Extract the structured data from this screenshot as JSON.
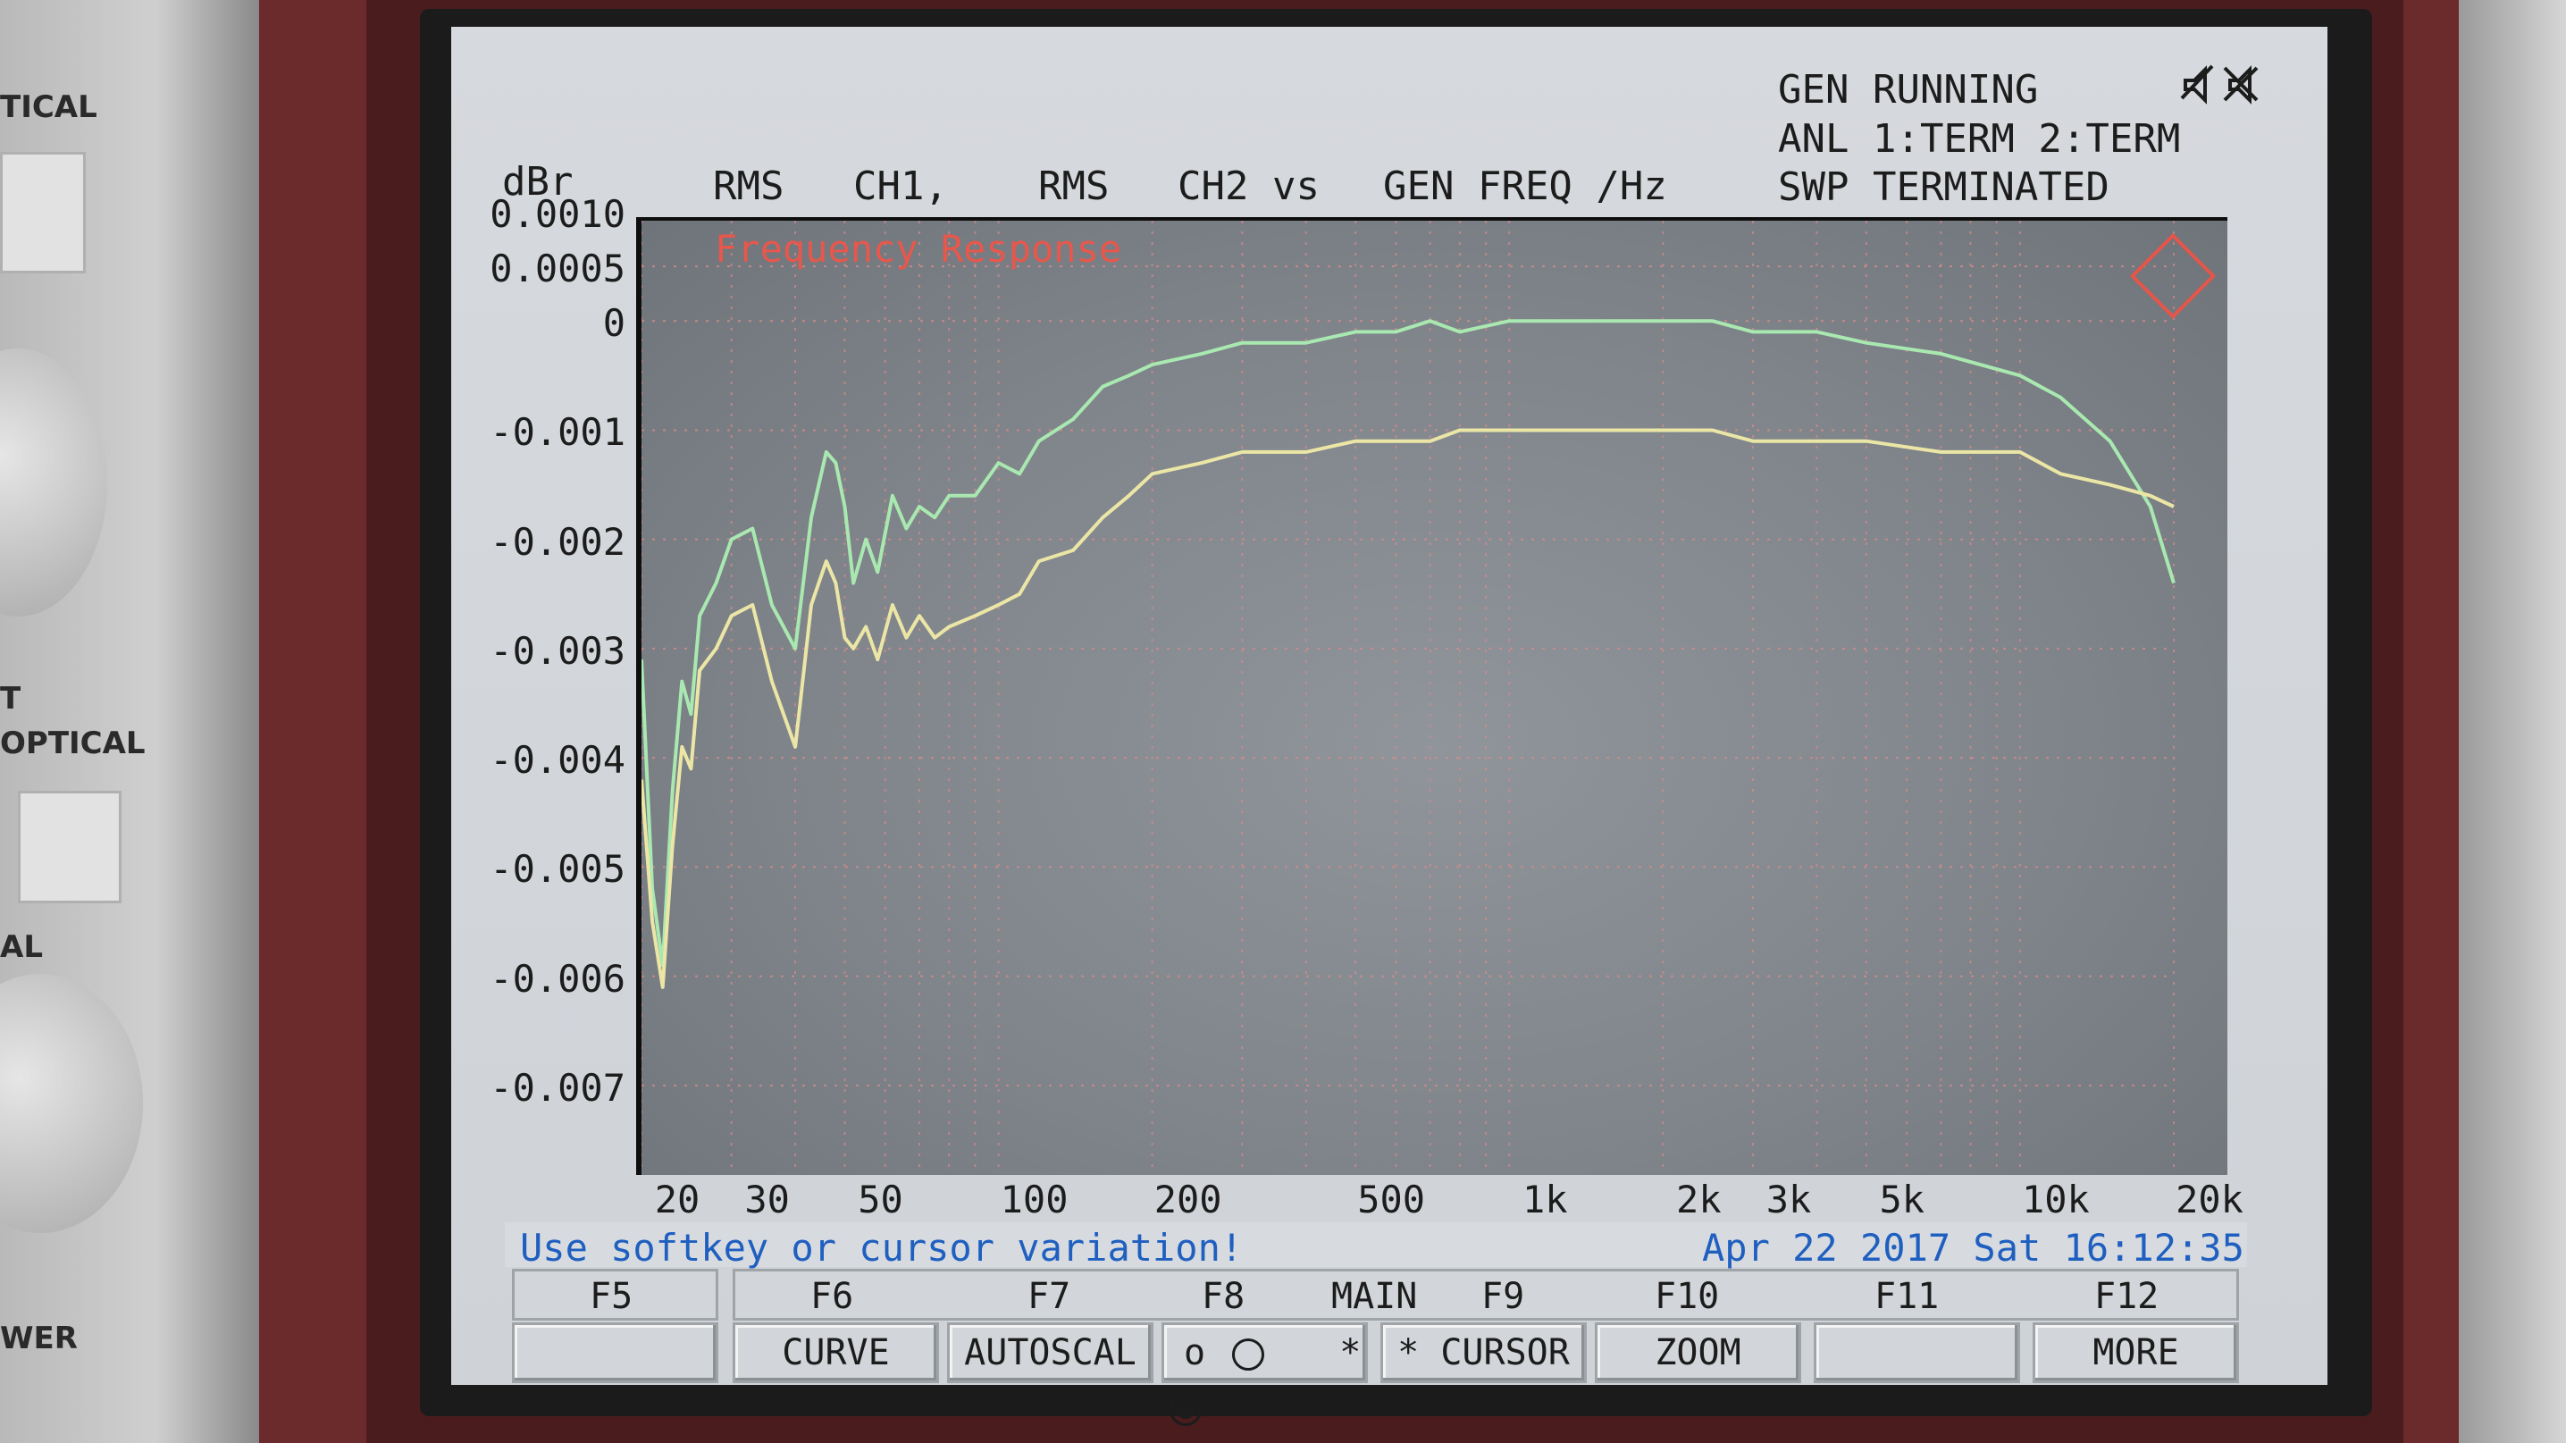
{
  "status": {
    "line1": "GEN RUNNING",
    "line2": "ANL 1:TERM 2:TERM",
    "line3": "SWP TERMINATED"
  },
  "header": {
    "unit": "dBr",
    "rms1": "RMS",
    "ch1": "CH1,",
    "rms2": "RMS",
    "ch2vs": "CH2 vs",
    "genfreq": "GEN FREQ /Hz"
  },
  "panel_labels": {
    "a": "TICAL",
    "b": "T",
    "c": "OPTICAL",
    "d": "AL",
    "e": "WER"
  },
  "message": "Use softkey or cursor variation!",
  "datetime": "Apr 22 2017 Sat 16:12:35",
  "fkeys": [
    "F5",
    "F6",
    "F7",
    "F8",
    "MAIN",
    "F9",
    "F10",
    "F11",
    "F12"
  ],
  "softkeys": {
    "f5": "",
    "curve": "CURVE",
    "autoscal": "AUTOSCAL",
    "radio_off": "o",
    "radio_on": "*",
    "cursor": "* CURSOR",
    "zoom": "ZOOM",
    "f11": "",
    "more": "MORE"
  },
  "colors": {
    "trace1": "#a9e8b0",
    "trace2": "#ece6a6",
    "title": "#e8574c",
    "grid": "#d98b8b"
  },
  "chart_data": {
    "type": "line",
    "title": "Frequency Response",
    "xlabel": "GEN FREQ /Hz",
    "ylabel": "dBr",
    "xscale": "log",
    "xlim": [
      20,
      20000
    ],
    "ylim": [
      -0.0077,
      0.001
    ],
    "xticks": [
      20,
      30,
      50,
      100,
      200,
      500,
      1000,
      2000,
      3000,
      5000,
      10000,
      20000
    ],
    "xtick_labels": [
      "20",
      "30",
      "50",
      "100",
      "200",
      "500",
      "1k",
      "2k",
      "3k",
      "5k",
      "10k",
      "20k"
    ],
    "yticks": [
      0.001,
      0.0005,
      0,
      -0.001,
      -0.002,
      -0.003,
      -0.004,
      -0.005,
      -0.006,
      -0.007
    ],
    "ytick_labels": [
      "0.0010",
      "0.0005",
      "0",
      "-0.001",
      "-0.002",
      "-0.003",
      "-0.004",
      "-0.005",
      "-0.006",
      "-0.007"
    ],
    "grid": true,
    "series": [
      {
        "name": "",
        "color": "#a9e8b0",
        "x": [
          20,
          21,
          22,
          23,
          24,
          25,
          26,
          28,
          30,
          33,
          36,
          40,
          43,
          46,
          48,
          50,
          52,
          55,
          58,
          62,
          66,
          70,
          75,
          80,
          90,
          100,
          110,
          120,
          140,
          160,
          180,
          200,
          250,
          300,
          400,
          500,
          600,
          700,
          800,
          1000,
          1200,
          1500,
          2000,
          2500,
          3000,
          4000,
          5000,
          7000,
          10000,
          12000,
          15000,
          18000,
          20000
        ],
        "y": [
          -0.0031,
          -0.0052,
          -0.0059,
          -0.0043,
          -0.0033,
          -0.0036,
          -0.0027,
          -0.0024,
          -0.002,
          -0.0019,
          -0.0026,
          -0.003,
          -0.0018,
          -0.0012,
          -0.0013,
          -0.0017,
          -0.0024,
          -0.002,
          -0.0023,
          -0.0016,
          -0.0019,
          -0.0017,
          -0.0018,
          -0.0016,
          -0.0016,
          -0.0013,
          -0.0014,
          -0.0011,
          -0.0009,
          -0.0006,
          -0.0005,
          -0.0004,
          -0.0003,
          -0.0002,
          -0.0002,
          -0.0001,
          -0.0001,
          0.0,
          -0.0001,
          0.0,
          0.0,
          0.0,
          0.0,
          0.0,
          -0.0001,
          -0.0001,
          -0.0002,
          -0.0003,
          -0.0005,
          -0.0007,
          -0.0011,
          -0.0017,
          -0.0024
        ]
      },
      {
        "name": "",
        "color": "#ece6a6",
        "x": [
          20,
          21,
          22,
          23,
          24,
          25,
          26,
          28,
          30,
          33,
          36,
          40,
          43,
          46,
          48,
          50,
          52,
          55,
          58,
          62,
          66,
          70,
          75,
          80,
          90,
          100,
          110,
          120,
          140,
          160,
          180,
          200,
          250,
          300,
          400,
          500,
          600,
          700,
          800,
          1000,
          1200,
          1500,
          2000,
          2500,
          3000,
          4000,
          5000,
          7000,
          10000,
          12000,
          15000,
          18000,
          20000
        ],
        "y": [
          -0.0042,
          -0.0055,
          -0.0061,
          -0.0048,
          -0.0039,
          -0.0041,
          -0.0032,
          -0.003,
          -0.0027,
          -0.0026,
          -0.0033,
          -0.0039,
          -0.0026,
          -0.0022,
          -0.0024,
          -0.0029,
          -0.003,
          -0.0028,
          -0.0031,
          -0.0026,
          -0.0029,
          -0.0027,
          -0.0029,
          -0.0028,
          -0.0027,
          -0.0026,
          -0.0025,
          -0.0022,
          -0.0021,
          -0.0018,
          -0.0016,
          -0.0014,
          -0.0013,
          -0.0012,
          -0.0012,
          -0.0011,
          -0.0011,
          -0.0011,
          -0.001,
          -0.001,
          -0.001,
          -0.001,
          -0.001,
          -0.001,
          -0.0011,
          -0.0011,
          -0.0011,
          -0.0012,
          -0.0012,
          -0.0014,
          -0.0015,
          -0.0016,
          -0.0017
        ]
      }
    ]
  }
}
